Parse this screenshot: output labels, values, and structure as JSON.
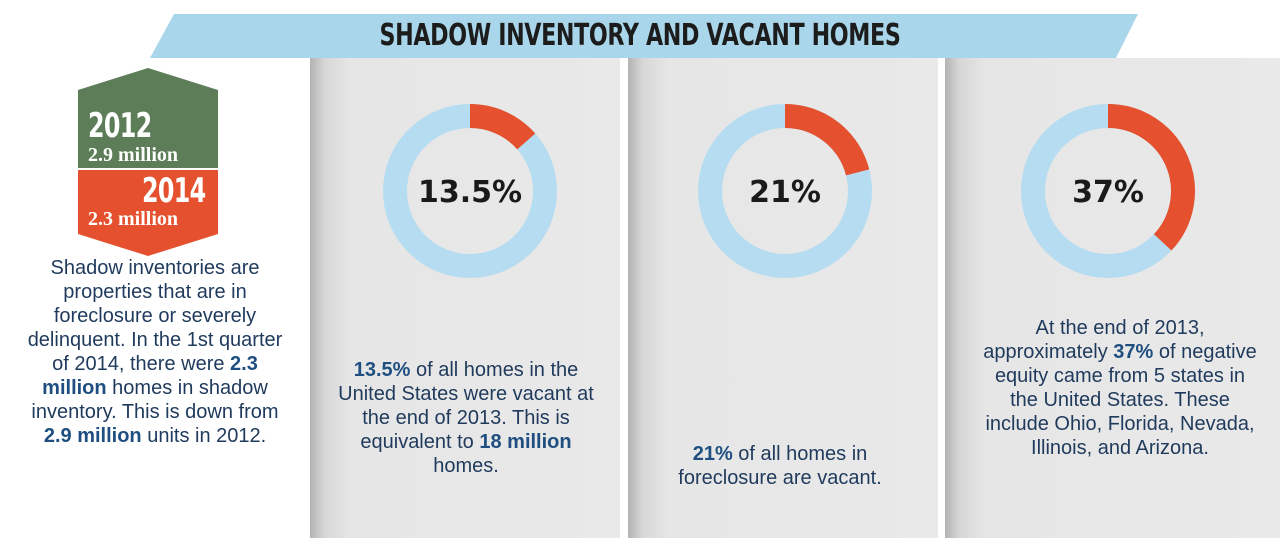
{
  "title": "SHADOW INVENTORY AND VACANT HOMES",
  "colors": {
    "banner": "#a9d6ea",
    "hex_2012": "#5c7d58",
    "hex_2014": "#e5512e",
    "donut_track": "#b5dcf0",
    "donut_fill": "#e5512e",
    "text": "#1f3a5c"
  },
  "shadow_inventory": {
    "year_2012": "2012",
    "value_2012": "2.9 million",
    "year_2014": "2014",
    "value_2014": "2.3 million",
    "desc": {
      "t1": "Shadow inventories are properties that are in foreclosure or severely delinquent. In the 1st quarter of 2014, there were ",
      "b1": "2.3 million",
      "t2": " homes in shadow inventory. This is down from ",
      "b2": "2.9 million",
      "t3": " units in 2012."
    }
  },
  "chart_data": [
    {
      "type": "pie",
      "value": 13.5,
      "label": "13.5%",
      "desc": {
        "b1": "13.5%",
        "t1": " of all homes in the United States were vacant at the end of 2013. This is equivalent to ",
        "b2": "18 million",
        "t2": " homes."
      }
    },
    {
      "type": "pie",
      "value": 21,
      "label": "21%",
      "desc": {
        "b1": "21%",
        "t1": " of all homes in foreclosure are vacant."
      }
    },
    {
      "type": "pie",
      "value": 37,
      "label": "37%",
      "desc": {
        "t0": "At the end of 2013, approximately ",
        "b1": "37%",
        "t1": " of negative equity came from 5 states in the United States. These include Ohio, Florida, Nevada, Illinois, and Arizona."
      }
    }
  ]
}
